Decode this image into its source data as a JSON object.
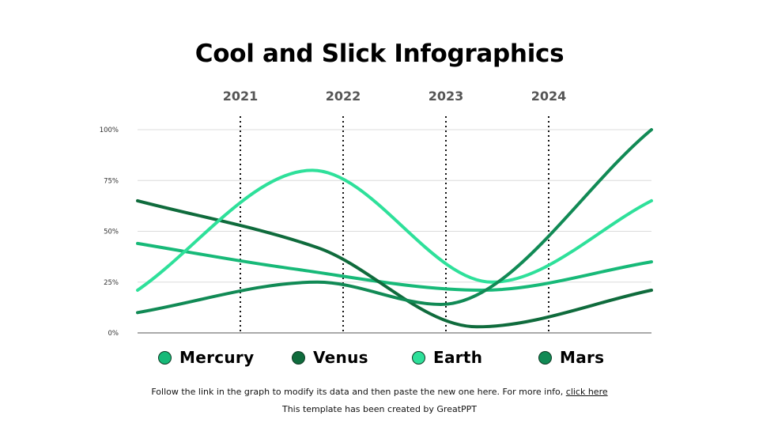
{
  "chart_data": {
    "type": "line",
    "title": "Cool and Slick Infographics",
    "x_labels": [
      "2021",
      "2022",
      "2023",
      "2024"
    ],
    "y_ticks": [
      "0%",
      "25%",
      "50%",
      "75%",
      "100%"
    ],
    "ylim": [
      0,
      100
    ],
    "grid": true,
    "legend_position": "bottom",
    "series": [
      {
        "name": "Mercury",
        "color": "#17b978",
        "points": [
          {
            "x": 0.0,
            "y": 44
          },
          {
            "x": 1.45,
            "y": 32
          },
          {
            "x": 3.35,
            "y": 21
          },
          {
            "x": 5.0,
            "y": 35
          }
        ]
      },
      {
        "name": "Venus",
        "color": "#0f6b3c",
        "points": [
          {
            "x": 0.0,
            "y": 65
          },
          {
            "x": 1.75,
            "y": 42
          },
          {
            "x": 3.3,
            "y": 3
          },
          {
            "x": 5.0,
            "y": 21
          }
        ]
      },
      {
        "name": "Earth",
        "color": "#2ee09a",
        "points": [
          {
            "x": 0.0,
            "y": 21
          },
          {
            "x": 1.7,
            "y": 80
          },
          {
            "x": 3.45,
            "y": 25
          },
          {
            "x": 5.0,
            "y": 65
          }
        ]
      },
      {
        "name": "Mars",
        "color": "#118a55",
        "points": [
          {
            "x": 0.0,
            "y": 10
          },
          {
            "x": 1.75,
            "y": 25
          },
          {
            "x": 2.95,
            "y": 14
          },
          {
            "x": 5.0,
            "y": 100
          }
        ]
      }
    ]
  },
  "footer": {
    "note_text": "Follow the link in the graph to modify its data and then paste the new one here. For more info, ",
    "link_text": "click here",
    "credit": "This template has been created by GreatPPT"
  }
}
